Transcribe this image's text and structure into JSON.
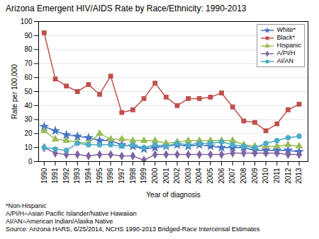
{
  "chart_data": {
    "type": "line",
    "title": "Arizona Emergent HIV/AIDS Rate by Race/Ethnicity: 1990-2013",
    "xlabel": "Year of diagnosis",
    "ylabel": "Rate per 100,000",
    "x": [
      1990,
      1991,
      1992,
      1993,
      1994,
      1995,
      1996,
      1997,
      1998,
      1999,
      2000,
      2001,
      2002,
      2003,
      2004,
      2005,
      2006,
      2007,
      2008,
      2009,
      2010,
      2011,
      2012,
      2013
    ],
    "series": [
      {
        "name": "White*",
        "color": "#4472C4",
        "marker": "star",
        "values": [
          25,
          22,
          19,
          18,
          17,
          15,
          15,
          12,
          11,
          9,
          10,
          11,
          12,
          11,
          12,
          11,
          10,
          10,
          10,
          8,
          8,
          8,
          8,
          7
        ]
      },
      {
        "name": "Black*",
        "color": "#C0504D",
        "marker": "square",
        "values": [
          92,
          59,
          54,
          50,
          55,
          48,
          61,
          35,
          37,
          45,
          56,
          46,
          40,
          45,
          45,
          46,
          49,
          39,
          29,
          28,
          22,
          27,
          37,
          41
        ]
      },
      {
        "name": "Hispanic",
        "color": "#9BBB59",
        "marker": "triangle",
        "values": [
          22,
          16,
          15,
          14,
          13,
          20,
          16,
          16,
          15,
          15,
          15,
          13,
          14,
          15,
          15,
          15,
          15,
          15,
          12,
          11,
          11,
          11,
          12,
          11
        ]
      },
      {
        "name": "A/PI/H",
        "color": "#8064A2",
        "marker": "diamond",
        "values": [
          10,
          6,
          5,
          5,
          4,
          5,
          5,
          4,
          4,
          1,
          5,
          5,
          5,
          5,
          5,
          5,
          5,
          6,
          6,
          6,
          6,
          6,
          5,
          5
        ]
      },
      {
        "name": "AI/AN",
        "color": "#4BACC6",
        "marker": "circle",
        "values": [
          10,
          9,
          8,
          13,
          12,
          12,
          12,
          11,
          12,
          10,
          12,
          11,
          13,
          12,
          13,
          13,
          14,
          12,
          11,
          10,
          13,
          15,
          17,
          18
        ]
      }
    ],
    "xlim": [
      1989.5,
      2013.8
    ],
    "xticks": [
      1990,
      1991,
      1992,
      1993,
      1994,
      1995,
      1996,
      1997,
      1998,
      1999,
      2000,
      2001,
      2002,
      2003,
      2004,
      2005,
      2006,
      2007,
      2008,
      2009,
      2010,
      2011,
      2012,
      2013
    ],
    "ylim": [
      0,
      100
    ],
    "yticks": [
      0,
      10,
      20,
      30,
      40,
      50,
      60,
      70,
      80,
      90,
      100
    ],
    "grid": "y",
    "legend": "upper right",
    "annotations": [
      "*Non-Hispanic",
      "A/PI/H=Asian Pacific Islander/Native Hawaiian",
      "AI/AN=American Indian/Alaska Native",
      "Source: Arizona HARS, 6/25/2014, NCHS 1990-2013 Bridged-Race Intercensal Estimates"
    ]
  }
}
